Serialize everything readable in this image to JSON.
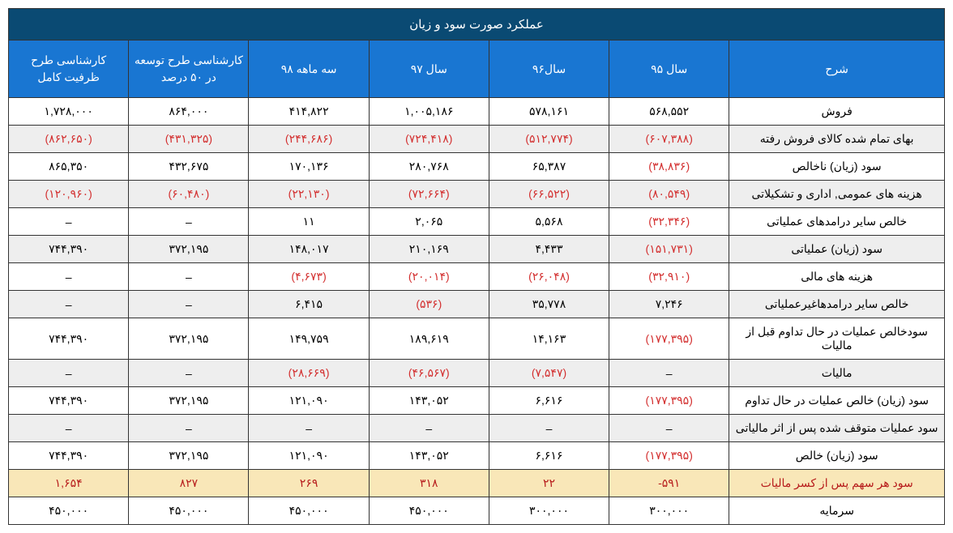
{
  "title": "عملکرد صورت سود و زیان",
  "columns": [
    "شرح",
    "سال ۹۵",
    "سال۹۶",
    "سال ۹۷",
    "سه ماهه ۹۸",
    "کارشناسی طرح توسعه در ۵۰ درصد",
    "کارشناسی طرح ظرفیت کامل"
  ],
  "rows": [
    {
      "alt": false,
      "cells": [
        {
          "v": "فروش",
          "n": false
        },
        {
          "v": "۵۶۸,۵۵۲",
          "n": false
        },
        {
          "v": "۵۷۸,۱۶۱",
          "n": false
        },
        {
          "v": "۱,۰۰۵,۱۸۶",
          "n": false
        },
        {
          "v": "۴۱۴,۸۲۲",
          "n": false
        },
        {
          "v": "۸۶۴,۰۰۰",
          "n": false
        },
        {
          "v": "۱,۷۲۸,۰۰۰",
          "n": false
        }
      ]
    },
    {
      "alt": true,
      "cells": [
        {
          "v": "بهای تمام شده کالای فروش رفته",
          "n": false
        },
        {
          "v": "(۶۰۷,۳۸۸)",
          "n": true
        },
        {
          "v": "(۵۱۲,۷۷۴)",
          "n": true
        },
        {
          "v": "(۷۲۴,۴۱۸)",
          "n": true
        },
        {
          "v": "(۲۴۴,۶۸۶)",
          "n": true
        },
        {
          "v": "(۴۳۱,۳۲۵)",
          "n": true
        },
        {
          "v": "(۸۶۲,۶۵۰)",
          "n": true
        }
      ]
    },
    {
      "alt": false,
      "cells": [
        {
          "v": "سود (زیان) ناخالص",
          "n": false
        },
        {
          "v": "(۳۸,۸۳۶)",
          "n": true
        },
        {
          "v": "۶۵,۳۸۷",
          "n": false
        },
        {
          "v": "۲۸۰,۷۶۸",
          "n": false
        },
        {
          "v": "۱۷۰,۱۳۶",
          "n": false
        },
        {
          "v": "۴۳۲,۶۷۵",
          "n": false
        },
        {
          "v": "۸۶۵,۳۵۰",
          "n": false
        }
      ]
    },
    {
      "alt": true,
      "cells": [
        {
          "v": "هزینه های عمومی, اداری و تشکیلاتی",
          "n": false
        },
        {
          "v": "(۸۰,۵۴۹)",
          "n": true
        },
        {
          "v": "(۶۶,۵۲۲)",
          "n": true
        },
        {
          "v": "(۷۲,۶۶۴)",
          "n": true
        },
        {
          "v": "(۲۲,۱۳۰)",
          "n": true
        },
        {
          "v": "(۶۰,۴۸۰)",
          "n": true
        },
        {
          "v": "(۱۲۰,۹۶۰)",
          "n": true
        }
      ]
    },
    {
      "alt": false,
      "cells": [
        {
          "v": "خالص سایر درامدهای عملیاتی",
          "n": false
        },
        {
          "v": "(۳۲,۳۴۶)",
          "n": true
        },
        {
          "v": "۵,۵۶۸",
          "n": false
        },
        {
          "v": "۲,۰۶۵",
          "n": false
        },
        {
          "v": "۱۱",
          "n": false
        },
        {
          "v": "–",
          "n": false
        },
        {
          "v": "–",
          "n": false
        }
      ]
    },
    {
      "alt": true,
      "cells": [
        {
          "v": "سود (زیان) عملیاتی",
          "n": false
        },
        {
          "v": "(۱۵۱,۷۳۱)",
          "n": true
        },
        {
          "v": "۴,۴۳۳",
          "n": false
        },
        {
          "v": "۲۱۰,۱۶۹",
          "n": false
        },
        {
          "v": "۱۴۸,۰۱۷",
          "n": false
        },
        {
          "v": "۳۷۲,۱۹۵",
          "n": false
        },
        {
          "v": "۷۴۴,۳۹۰",
          "n": false
        }
      ]
    },
    {
      "alt": false,
      "cells": [
        {
          "v": "هزینه های مالی",
          "n": false
        },
        {
          "v": "(۳۲,۹۱۰)",
          "n": true
        },
        {
          "v": "(۲۶,۰۴۸)",
          "n": true
        },
        {
          "v": "(۲۰,۰۱۴)",
          "n": true
        },
        {
          "v": "(۴,۶۷۳)",
          "n": true
        },
        {
          "v": "–",
          "n": false
        },
        {
          "v": "–",
          "n": false
        }
      ]
    },
    {
      "alt": true,
      "cells": [
        {
          "v": "خالص سایر درامدهاغیرعملیاتی",
          "n": false
        },
        {
          "v": "۷,۲۴۶",
          "n": false
        },
        {
          "v": "۳۵,۷۷۸",
          "n": false
        },
        {
          "v": "(۵۳۶)",
          "n": true
        },
        {
          "v": "۶,۴۱۵",
          "n": false
        },
        {
          "v": "–",
          "n": false
        },
        {
          "v": "–",
          "n": false
        }
      ]
    },
    {
      "alt": false,
      "cells": [
        {
          "v": "سودخالص عملیات در حال تداوم قبل از مالیات",
          "n": false
        },
        {
          "v": "(۱۷۷,۳۹۵)",
          "n": true
        },
        {
          "v": "۱۴,۱۶۳",
          "n": false
        },
        {
          "v": "۱۸۹,۶۱۹",
          "n": false
        },
        {
          "v": "۱۴۹,۷۵۹",
          "n": false
        },
        {
          "v": "۳۷۲,۱۹۵",
          "n": false
        },
        {
          "v": "۷۴۴,۳۹۰",
          "n": false
        }
      ]
    },
    {
      "alt": true,
      "cells": [
        {
          "v": "مالیات",
          "n": false
        },
        {
          "v": "–",
          "n": false
        },
        {
          "v": "(۷,۵۴۷)",
          "n": true
        },
        {
          "v": "(۴۶,۵۶۷)",
          "n": true
        },
        {
          "v": "(۲۸,۶۶۹)",
          "n": true
        },
        {
          "v": "–",
          "n": false
        },
        {
          "v": "–",
          "n": false
        }
      ]
    },
    {
      "alt": false,
      "cells": [
        {
          "v": "سود (زیان) خالص عملیات در حال تداوم",
          "n": false
        },
        {
          "v": "(۱۷۷,۳۹۵)",
          "n": true
        },
        {
          "v": "۶,۶۱۶",
          "n": false
        },
        {
          "v": "۱۴۳,۰۵۲",
          "n": false
        },
        {
          "v": "۱۲۱,۰۹۰",
          "n": false
        },
        {
          "v": "۳۷۲,۱۹۵",
          "n": false
        },
        {
          "v": "۷۴۴,۳۹۰",
          "n": false
        }
      ]
    },
    {
      "alt": true,
      "cells": [
        {
          "v": "سود عملیات متوقف شده پس از اثر مالیاتی",
          "n": false
        },
        {
          "v": "–",
          "n": false
        },
        {
          "v": "–",
          "n": false
        },
        {
          "v": "–",
          "n": false
        },
        {
          "v": "–",
          "n": false
        },
        {
          "v": "–",
          "n": false
        },
        {
          "v": "–",
          "n": false
        }
      ]
    },
    {
      "alt": false,
      "cells": [
        {
          "v": "سود (زیان) خالص",
          "n": false
        },
        {
          "v": "(۱۷۷,۳۹۵)",
          "n": true
        },
        {
          "v": "۶,۶۱۶",
          "n": false
        },
        {
          "v": "۱۴۳,۰۵۲",
          "n": false
        },
        {
          "v": "۱۲۱,۰۹۰",
          "n": false
        },
        {
          "v": "۳۷۲,۱۹۵",
          "n": false
        },
        {
          "v": "۷۴۴,۳۹۰",
          "n": false
        }
      ]
    },
    {
      "alt": false,
      "highlight": true,
      "cells": [
        {
          "v": "سود هر سهم پس از کسر مالیات",
          "n": false
        },
        {
          "v": "۵۹۱-",
          "n": false
        },
        {
          "v": "۲۲",
          "n": false
        },
        {
          "v": "۳۱۸",
          "n": false
        },
        {
          "v": "۲۶۹",
          "n": false
        },
        {
          "v": "۸۲۷",
          "n": false
        },
        {
          "v": "۱,۶۵۴",
          "n": false
        }
      ]
    },
    {
      "alt": false,
      "cells": [
        {
          "v": "سرمایه",
          "n": false
        },
        {
          "v": "۳۰۰,۰۰۰",
          "n": false
        },
        {
          "v": "۳۰۰,۰۰۰",
          "n": false
        },
        {
          "v": "۴۵۰,۰۰۰",
          "n": false
        },
        {
          "v": "۴۵۰,۰۰۰",
          "n": false
        },
        {
          "v": "۴۵۰,۰۰۰",
          "n": false
        },
        {
          "v": "۴۵۰,۰۰۰",
          "n": false
        }
      ]
    }
  ]
}
